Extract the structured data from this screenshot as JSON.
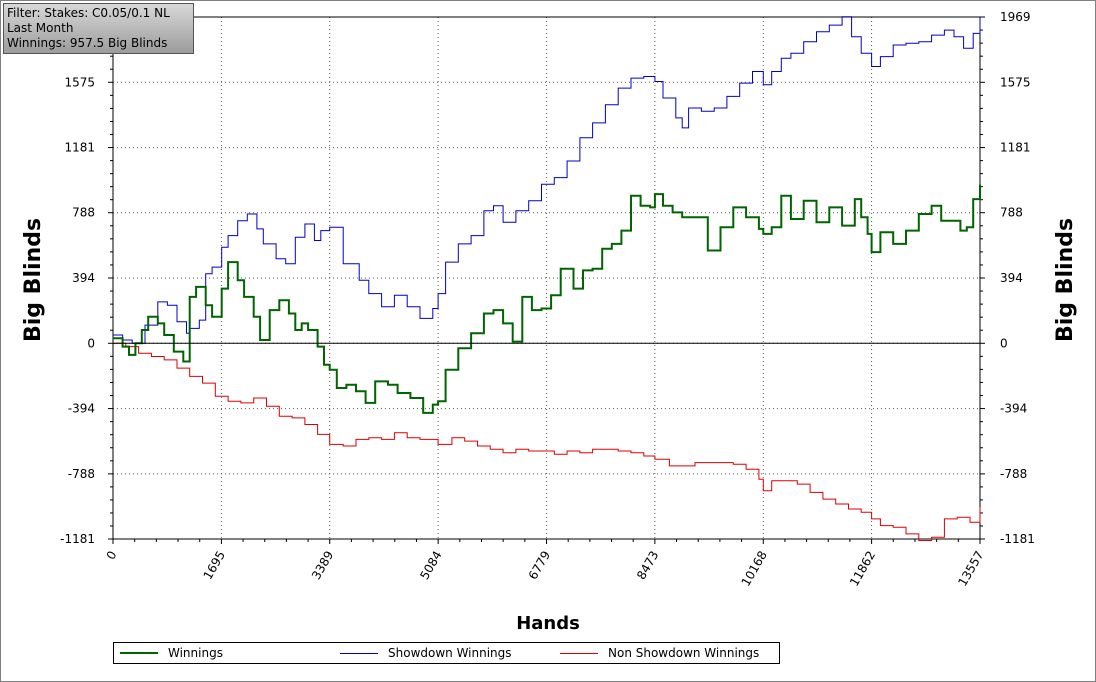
{
  "info": {
    "filter": "Filter: Stakes: C0.05/0.1 NL",
    "period": "Last Month",
    "winnings": "Winnings: 957.5 Big Blinds"
  },
  "chart_data": {
    "type": "line",
    "title": "",
    "xlabel": "Hands",
    "ylabel": "Big Blinds",
    "xlim": [
      0,
      13557
    ],
    "ylim": [
      -1181,
      1969
    ],
    "x_ticks": [
      0,
      1695,
      3389,
      5084,
      6779,
      8473,
      10168,
      11862,
      13557
    ],
    "y_ticks": [
      -1181,
      -788,
      -394,
      0,
      394,
      788,
      1181,
      1575,
      1969
    ],
    "grid": true,
    "legend_position": "bottom",
    "series": [
      {
        "name": "Winnings",
        "color": "#006400",
        "x": [
          0,
          150,
          250,
          350,
          450,
          550,
          700,
          800,
          950,
          1100,
          1200,
          1300,
          1450,
          1550,
          1700,
          1800,
          1950,
          2050,
          2200,
          2300,
          2450,
          2600,
          2750,
          2850,
          2950,
          3050,
          3200,
          3300,
          3389,
          3500,
          3650,
          3800,
          3950,
          4100,
          4300,
          4450,
          4650,
          4850,
          5000,
          5084,
          5200,
          5400,
          5600,
          5800,
          5950,
          6100,
          6250,
          6400,
          6550,
          6700,
          6850,
          7000,
          7200,
          7350,
          7500,
          7650,
          7800,
          7950,
          8100,
          8250,
          8400,
          8473,
          8600,
          8750,
          8900,
          9100,
          9300,
          9500,
          9700,
          9900,
          10100,
          10168,
          10300,
          10450,
          10600,
          10800,
          11000,
          11200,
          11400,
          11600,
          11700,
          11800,
          11862,
          12000,
          12200,
          12400,
          12600,
          12800,
          12950,
          13100,
          13250,
          13350,
          13450,
          13557
        ],
        "y": [
          30,
          -20,
          -70,
          0,
          80,
          160,
          120,
          50,
          -50,
          -110,
          280,
          340,
          230,
          160,
          330,
          490,
          380,
          280,
          160,
          20,
          200,
          260,
          180,
          80,
          120,
          80,
          -20,
          -130,
          -160,
          -270,
          -250,
          -290,
          -360,
          -230,
          -250,
          -300,
          -330,
          -420,
          -370,
          -350,
          -160,
          -30,
          60,
          180,
          200,
          120,
          10,
          280,
          200,
          210,
          290,
          450,
          330,
          440,
          450,
          570,
          600,
          680,
          890,
          830,
          820,
          900,
          830,
          790,
          760,
          760,
          560,
          700,
          820,
          760,
          690,
          660,
          700,
          890,
          750,
          860,
          730,
          820,
          710,
          870,
          760,
          660,
          550,
          670,
          600,
          680,
          780,
          830,
          740,
          740,
          680,
          700,
          870,
          957
        ]
      },
      {
        "name": "Showdown Winnings",
        "color": "#0000cc",
        "x": [
          0,
          150,
          300,
          500,
          700,
          850,
          1000,
          1150,
          1200,
          1350,
          1450,
          1550,
          1700,
          1800,
          1950,
          2100,
          2250,
          2350,
          2550,
          2700,
          2850,
          3000,
          3150,
          3250,
          3389,
          3600,
          3850,
          4000,
          4200,
          4400,
          4600,
          4800,
          5000,
          5084,
          5200,
          5400,
          5600,
          5800,
          5950,
          6100,
          6300,
          6500,
          6700,
          6900,
          7100,
          7300,
          7500,
          7700,
          7900,
          8100,
          8300,
          8473,
          8600,
          8800,
          8900,
          9000,
          9200,
          9400,
          9600,
          9800,
          10000,
          10168,
          10300,
          10450,
          10600,
          10800,
          11000,
          11200,
          11400,
          11550,
          11700,
          11862,
          12000,
          12200,
          12400,
          12600,
          12800,
          13000,
          13150,
          13300,
          13450,
          13557
        ],
        "y": [
          50,
          20,
          0,
          110,
          250,
          230,
          130,
          60,
          90,
          140,
          420,
          460,
          580,
          650,
          740,
          780,
          690,
          600,
          510,
          480,
          640,
          720,
          620,
          680,
          700,
          480,
          380,
          300,
          220,
          290,
          220,
          150,
          210,
          300,
          490,
          600,
          650,
          800,
          830,
          730,
          800,
          860,
          960,
          1000,
          1100,
          1240,
          1330,
          1440,
          1540,
          1600,
          1610,
          1580,
          1480,
          1360,
          1300,
          1420,
          1400,
          1420,
          1490,
          1570,
          1640,
          1560,
          1640,
          1720,
          1750,
          1820,
          1880,
          1920,
          1970,
          1850,
          1750,
          1670,
          1730,
          1800,
          1810,
          1820,
          1860,
          1890,
          1850,
          1780,
          1870,
          1969
        ]
      },
      {
        "name": "Non Showdown Winnings",
        "color": "#dd0000",
        "x": [
          0,
          200,
          400,
          600,
          800,
          1000,
          1200,
          1400,
          1600,
          1800,
          2000,
          2200,
          2400,
          2600,
          2800,
          3000,
          3200,
          3389,
          3600,
          3800,
          4000,
          4200,
          4400,
          4600,
          4800,
          5084,
          5300,
          5500,
          5700,
          5900,
          6100,
          6300,
          6500,
          6700,
          6900,
          7100,
          7300,
          7500,
          7700,
          7900,
          8100,
          8300,
          8473,
          8700,
          8900,
          9100,
          9300,
          9500,
          9700,
          9900,
          10100,
          10168,
          10300,
          10500,
          10700,
          10900,
          11100,
          11300,
          11500,
          11700,
          11862,
          12000,
          12200,
          12400,
          12600,
          12800,
          13000,
          13200,
          13400,
          13557
        ],
        "y": [
          0,
          -20,
          -60,
          -80,
          -100,
          -150,
          -200,
          -240,
          -320,
          -350,
          -360,
          -330,
          -380,
          -440,
          -450,
          -490,
          -550,
          -610,
          -620,
          -580,
          -570,
          -580,
          -540,
          -570,
          -580,
          -610,
          -570,
          -590,
          -620,
          -640,
          -660,
          -640,
          -650,
          -650,
          -670,
          -650,
          -660,
          -640,
          -640,
          -650,
          -660,
          -680,
          -700,
          -740,
          -740,
          -720,
          -720,
          -720,
          -730,
          -760,
          -820,
          -890,
          -830,
          -830,
          -850,
          -900,
          -940,
          -970,
          -1000,
          -1020,
          -1060,
          -1100,
          -1110,
          -1150,
          -1190,
          -1170,
          -1060,
          -1050,
          -1080,
          -990
        ]
      }
    ]
  }
}
